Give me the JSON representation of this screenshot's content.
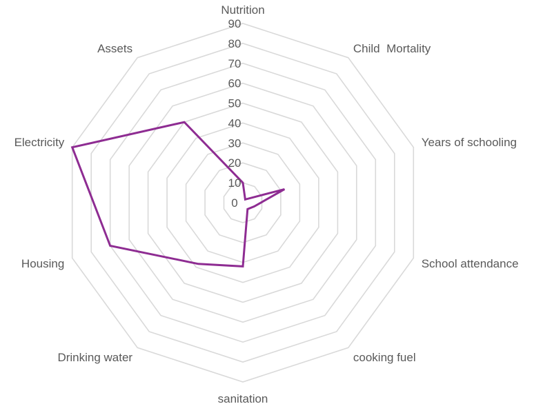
{
  "chart_data": {
    "type": "radar",
    "categories": [
      "Nutrition",
      "Child  Mortality",
      "Years of schooling",
      "School attendance",
      "cooking fuel",
      "sanitation",
      "Drinking water",
      "Housing",
      "Electricity",
      "Assets"
    ],
    "series": [
      {
        "values": [
          10,
          2,
          22,
          6,
          4,
          32,
          38,
          70,
          90,
          50
        ],
        "color": "#8e2c92"
      }
    ],
    "rlim": [
      0,
      90
    ],
    "ticks": [
      "0",
      "10",
      "20",
      "30",
      "40",
      "50",
      "60",
      "70",
      "80",
      "90"
    ],
    "grid": true,
    "legend": "none",
    "title": ""
  }
}
